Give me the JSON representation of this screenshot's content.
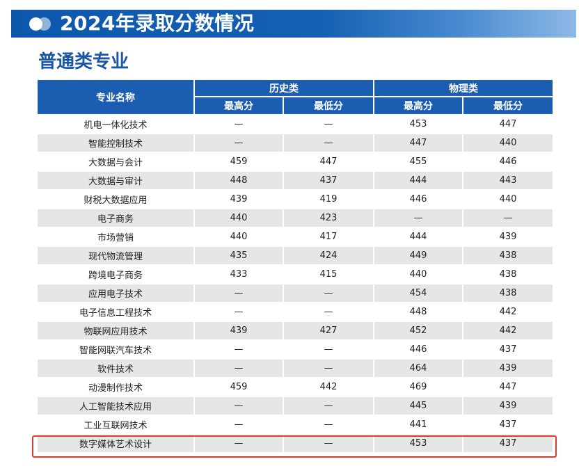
{
  "banner": {
    "title": "2024年录取分数情况"
  },
  "section": {
    "subtitle": "普通类专业"
  },
  "table": {
    "col_major": "专业名称",
    "group_history": "历史类",
    "group_physics": "物理类",
    "sub_max": "最高分",
    "sub_min": "最低分",
    "rows": [
      {
        "major": "机电一体化技术",
        "h_max": "—",
        "h_min": "—",
        "p_max": "453",
        "p_min": "447"
      },
      {
        "major": "智能控制技术",
        "h_max": "—",
        "h_min": "—",
        "p_max": "447",
        "p_min": "440"
      },
      {
        "major": "大数据与会计",
        "h_max": "459",
        "h_min": "447",
        "p_max": "455",
        "p_min": "446"
      },
      {
        "major": "大数据与审计",
        "h_max": "448",
        "h_min": "437",
        "p_max": "444",
        "p_min": "443"
      },
      {
        "major": "财税大数据应用",
        "h_max": "439",
        "h_min": "419",
        "p_max": "446",
        "p_min": "440"
      },
      {
        "major": "电子商务",
        "h_max": "440",
        "h_min": "423",
        "p_max": "—",
        "p_min": "—"
      },
      {
        "major": "市场营销",
        "h_max": "440",
        "h_min": "417",
        "p_max": "444",
        "p_min": "439"
      },
      {
        "major": "现代物流管理",
        "h_max": "435",
        "h_min": "424",
        "p_max": "449",
        "p_min": "438"
      },
      {
        "major": "跨境电子商务",
        "h_max": "433",
        "h_min": "415",
        "p_max": "440",
        "p_min": "438"
      },
      {
        "major": "应用电子技术",
        "h_max": "—",
        "h_min": "—",
        "p_max": "454",
        "p_min": "438"
      },
      {
        "major": "电子信息工程技术",
        "h_max": "—",
        "h_min": "—",
        "p_max": "448",
        "p_min": "442"
      },
      {
        "major": "物联网应用技术",
        "h_max": "439",
        "h_min": "427",
        "p_max": "452",
        "p_min": "442"
      },
      {
        "major": "智能网联汽车技术",
        "h_max": "—",
        "h_min": "—",
        "p_max": "446",
        "p_min": "437"
      },
      {
        "major": "软件技术",
        "h_max": "—",
        "h_min": "—",
        "p_max": "464",
        "p_min": "439"
      },
      {
        "major": "动漫制作技术",
        "h_max": "459",
        "h_min": "442",
        "p_max": "469",
        "p_min": "447"
      },
      {
        "major": "人工智能技术应用",
        "h_max": "—",
        "h_min": "—",
        "p_max": "445",
        "p_min": "439"
      },
      {
        "major": "工业互联网技术",
        "h_max": "—",
        "h_min": "—",
        "p_max": "441",
        "p_min": "437"
      },
      {
        "major": "数字媒体艺术设计",
        "h_max": "—",
        "h_min": "—",
        "p_max": "453",
        "p_min": "437"
      }
    ]
  },
  "colors": {
    "header_blue": "#1b5db0",
    "subtitle_blue": "#1a56a6",
    "highlight_red": "#e23b2e",
    "row_gray": "#e6e6e6"
  }
}
